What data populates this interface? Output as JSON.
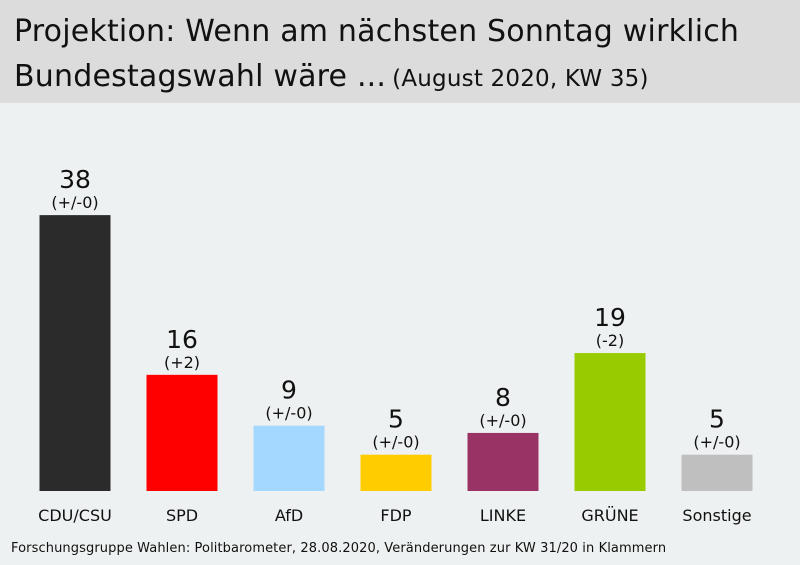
{
  "header": {
    "title_line1": "Projektion: Wenn am nächsten Sonntag wirklich",
    "title_line2": "Bundestagswahl wäre ...",
    "subtitle": "(August 2020, KW 35)"
  },
  "chart_data": {
    "type": "bar",
    "title": "Projektion: Wenn am nächsten Sonntag wirklich Bundestagswahl wäre ...",
    "subtitle": "(August 2020, KW 35)",
    "xlabel": "",
    "ylabel": "",
    "ylim": [
      0,
      40
    ],
    "grid": false,
    "categories": [
      "CDU/CSU",
      "SPD",
      "AfD",
      "FDP",
      "LINKE",
      "GRÜNE",
      "Sonstige"
    ],
    "values": [
      38,
      16,
      9,
      5,
      8,
      19,
      5
    ],
    "changes": [
      "(+/-0)",
      "(+2)",
      "(+/-0)",
      "(+/-0)",
      "(+/-0)",
      "(-2)",
      "(+/-0)"
    ],
    "colors": [
      "#2b2b2b",
      "#ff0000",
      "#a5d8ff",
      "#ffcc00",
      "#993366",
      "#99cc00",
      "#bfbfbf"
    ]
  },
  "footer": {
    "source": "Forschungsgruppe Wahlen: Politbarometer, 28.08.2020, Veränderungen zur KW 31/20 in Klammern"
  }
}
